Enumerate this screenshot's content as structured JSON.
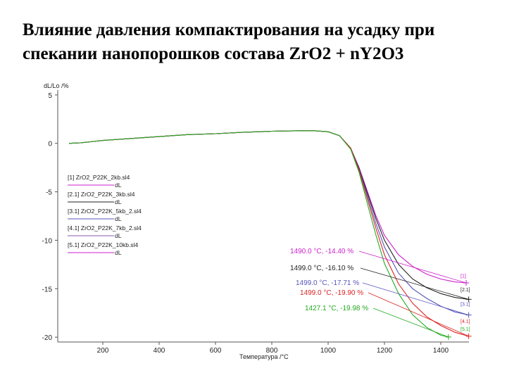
{
  "slide": {
    "title_line1": "Влияние давления компактирования на усадку при",
    "title_line2": "спекании нанопорошков состава ZrO2 + nY2O3"
  },
  "chart_data": {
    "type": "line",
    "ylabel": "dL/Lo /%",
    "xlabel": "Температура /°C",
    "xlim": [
      40,
      1500
    ],
    "ylim": [
      -20.5,
      5.5
    ],
    "x_ticks": [
      200,
      400,
      600,
      800,
      1000,
      1200,
      1400
    ],
    "y_ticks": [
      5,
      0,
      -5,
      -10,
      -15,
      -20
    ],
    "grid": false,
    "legend_position": "left-middle",
    "legend": [
      {
        "file": "[1] ZrO2_P22K_2kb.sl4",
        "sub": "dL",
        "color": "#cc22cc"
      },
      {
        "file": "[2.1] ZrO2_P22K_3kb.sl4",
        "sub": "dL",
        "color": "#222222"
      },
      {
        "file": "[3.1] ZrO2_P22K_5kb_2.sl4",
        "sub": "dL",
        "color": "#5555bb"
      },
      {
        "file": "[4.1] ZrO2_P22K_7kb_2.sl4",
        "sub": "dL",
        "color": "#8855aa"
      },
      {
        "file": "[5.1] ZrO2_P22K_10kb.sl4",
        "sub": "dL",
        "color": "#cc22cc"
      }
    ],
    "series": [
      {
        "color": "#cc22cc",
        "x": [
          80,
          120,
          200,
          300,
          400,
          500,
          600,
          700,
          800,
          900,
          950,
          1000,
          1040,
          1080,
          1110,
          1140,
          1170,
          1200,
          1250,
          1300,
          1350,
          1400,
          1450,
          1490
        ],
        "y": [
          0,
          0.05,
          0.3,
          0.5,
          0.7,
          0.9,
          1.0,
          1.15,
          1.25,
          1.3,
          1.3,
          1.2,
          0.8,
          -0.5,
          -2.5,
          -5.0,
          -7.5,
          -9.5,
          -11.5,
          -12.7,
          -13.5,
          -14.0,
          -14.3,
          -14.4
        ]
      },
      {
        "color": "#222222",
        "x": [
          80,
          120,
          200,
          300,
          400,
          500,
          600,
          700,
          800,
          900,
          950,
          1000,
          1040,
          1080,
          1110,
          1140,
          1170,
          1200,
          1250,
          1300,
          1350,
          1400,
          1450,
          1499
        ],
        "y": [
          0,
          0.05,
          0.3,
          0.5,
          0.7,
          0.9,
          1.0,
          1.15,
          1.25,
          1.3,
          1.3,
          1.2,
          0.8,
          -0.5,
          -2.6,
          -5.2,
          -7.8,
          -10.0,
          -12.5,
          -14.0,
          -14.9,
          -15.5,
          -15.9,
          -16.1
        ]
      },
      {
        "color": "#5555bb",
        "x": [
          80,
          120,
          200,
          300,
          400,
          500,
          600,
          700,
          800,
          900,
          950,
          1000,
          1040,
          1080,
          1110,
          1140,
          1170,
          1200,
          1250,
          1300,
          1350,
          1400,
          1450,
          1499
        ],
        "y": [
          0,
          0.05,
          0.3,
          0.5,
          0.7,
          0.9,
          1.0,
          1.15,
          1.25,
          1.3,
          1.3,
          1.2,
          0.8,
          -0.5,
          -2.7,
          -5.5,
          -8.3,
          -10.7,
          -13.4,
          -15.0,
          -16.0,
          -16.8,
          -17.4,
          -17.71
        ]
      },
      {
        "color": "#dd2222",
        "x": [
          80,
          120,
          200,
          300,
          400,
          500,
          600,
          700,
          800,
          900,
          950,
          1000,
          1040,
          1080,
          1110,
          1140,
          1170,
          1200,
          1250,
          1300,
          1350,
          1400,
          1450,
          1499
        ],
        "y": [
          0,
          0.05,
          0.3,
          0.5,
          0.7,
          0.9,
          1.0,
          1.15,
          1.25,
          1.3,
          1.3,
          1.2,
          0.8,
          -0.5,
          -2.8,
          -5.8,
          -8.8,
          -11.5,
          -14.5,
          -16.5,
          -17.9,
          -18.8,
          -19.5,
          -19.9
        ]
      },
      {
        "color": "#22aa22",
        "x": [
          80,
          120,
          200,
          300,
          400,
          500,
          600,
          700,
          800,
          900,
          950,
          1000,
          1040,
          1080,
          1110,
          1140,
          1170,
          1200,
          1250,
          1300,
          1350,
          1400,
          1427
        ],
        "y": [
          0,
          0.05,
          0.3,
          0.5,
          0.7,
          0.9,
          1.0,
          1.15,
          1.25,
          1.3,
          1.3,
          1.2,
          0.8,
          -0.6,
          -3.0,
          -6.3,
          -9.5,
          -12.4,
          -15.5,
          -17.7,
          -19.0,
          -19.8,
          -19.98
        ]
      }
    ],
    "annotations": [
      {
        "text": "1490.0 °C, -14.40 %",
        "color": "#cc22cc",
        "x": 1490,
        "y": -14.4
      },
      {
        "text": "1499.0 °C, -16.10 %",
        "color": "#222222",
        "x": 1499,
        "y": -16.1
      },
      {
        "text": "1499.0 °C, -17.71 %",
        "color": "#5555bb",
        "x": 1499,
        "y": -17.71
      },
      {
        "text": "1499.0 °C, -19.90 %",
        "color": "#dd2222",
        "x": 1499,
        "y": -19.9
      },
      {
        "text": "1427.1 °C, -19.98 %",
        "color": "#22aa22",
        "x": 1427.1,
        "y": -19.98
      }
    ],
    "end_tags": [
      "[1]",
      "[2.1]",
      "[3.1]",
      "[4.1]",
      "[5.1]"
    ]
  }
}
